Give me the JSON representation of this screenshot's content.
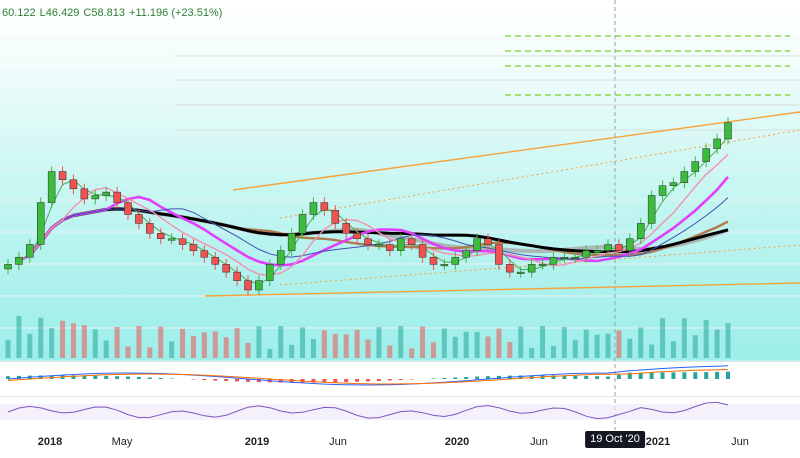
{
  "ohlc": {
    "open_partial": "60.122",
    "low": "L46.429",
    "close": "C58.813",
    "change": "+11.196 (+23.51%)"
  },
  "time_axis": {
    "labels": [
      {
        "text": "2018",
        "year": true
      },
      {
        "text": "May",
        "year": false
      },
      {
        "text": "2019",
        "year": true
      },
      {
        "text": "Jun",
        "year": false
      },
      {
        "text": "2020",
        "year": true
      },
      {
        "text": "Jun",
        "year": false
      },
      {
        "text": "2021",
        "year": true
      },
      {
        "text": "Jun",
        "year": false
      }
    ],
    "cursor_label": "19 Oct '20"
  },
  "colors": {
    "up": "#26a69a",
    "up_bright": "#3dbb3d",
    "down": "#ef5350",
    "ma_black": "#000000",
    "ma_brown": "#b07a50",
    "ma_gray": "#a9a9a9",
    "ma_magenta": "#e040fb",
    "ma_pink": "#f48fb1",
    "ma_blue": "#3f51b5",
    "channel_orange": "#f7a23a",
    "fib_green": "#7bd321",
    "macd_line": "#2962ff",
    "signal_line": "#ff6d00",
    "rsi_line": "#7e57c2"
  },
  "chart_data": {
    "type": "candlestick",
    "title": "",
    "x_axis_type": "time",
    "x_ticks": [
      "2018",
      "May",
      "2019",
      "Jun",
      "2020",
      "Jun",
      "2021",
      "Jun"
    ],
    "x_range": [
      "2017-11",
      "2021-06"
    ],
    "crosshair_x": "2020-10-19",
    "y_scale": "log",
    "panes": [
      "price",
      "volume",
      "macd",
      "rsi"
    ],
    "price_closes_approx": [
      12,
      13,
      15,
      24,
      34,
      31,
      28,
      25,
      26,
      27,
      24,
      21,
      19,
      17,
      16,
      16,
      15,
      14,
      13,
      12,
      11,
      10,
      9,
      10,
      12,
      14,
      17,
      21,
      24,
      22,
      19,
      17,
      16,
      15,
      15,
      14,
      16,
      15,
      13,
      12,
      12,
      13,
      14,
      16,
      15,
      12,
      11,
      11,
      12,
      12,
      13,
      13,
      13,
      14,
      14,
      15,
      14,
      16,
      19,
      26,
      29,
      30,
      34,
      38,
      44,
      49,
      58.8
    ],
    "indicators": [
      "moving averages (black, brown, gray, magenta, pink, blue)",
      "rising channel lines (orange)",
      "horizontal dashed levels (green)",
      "volume histogram",
      "MACD",
      "RSI"
    ],
    "grid": true
  }
}
